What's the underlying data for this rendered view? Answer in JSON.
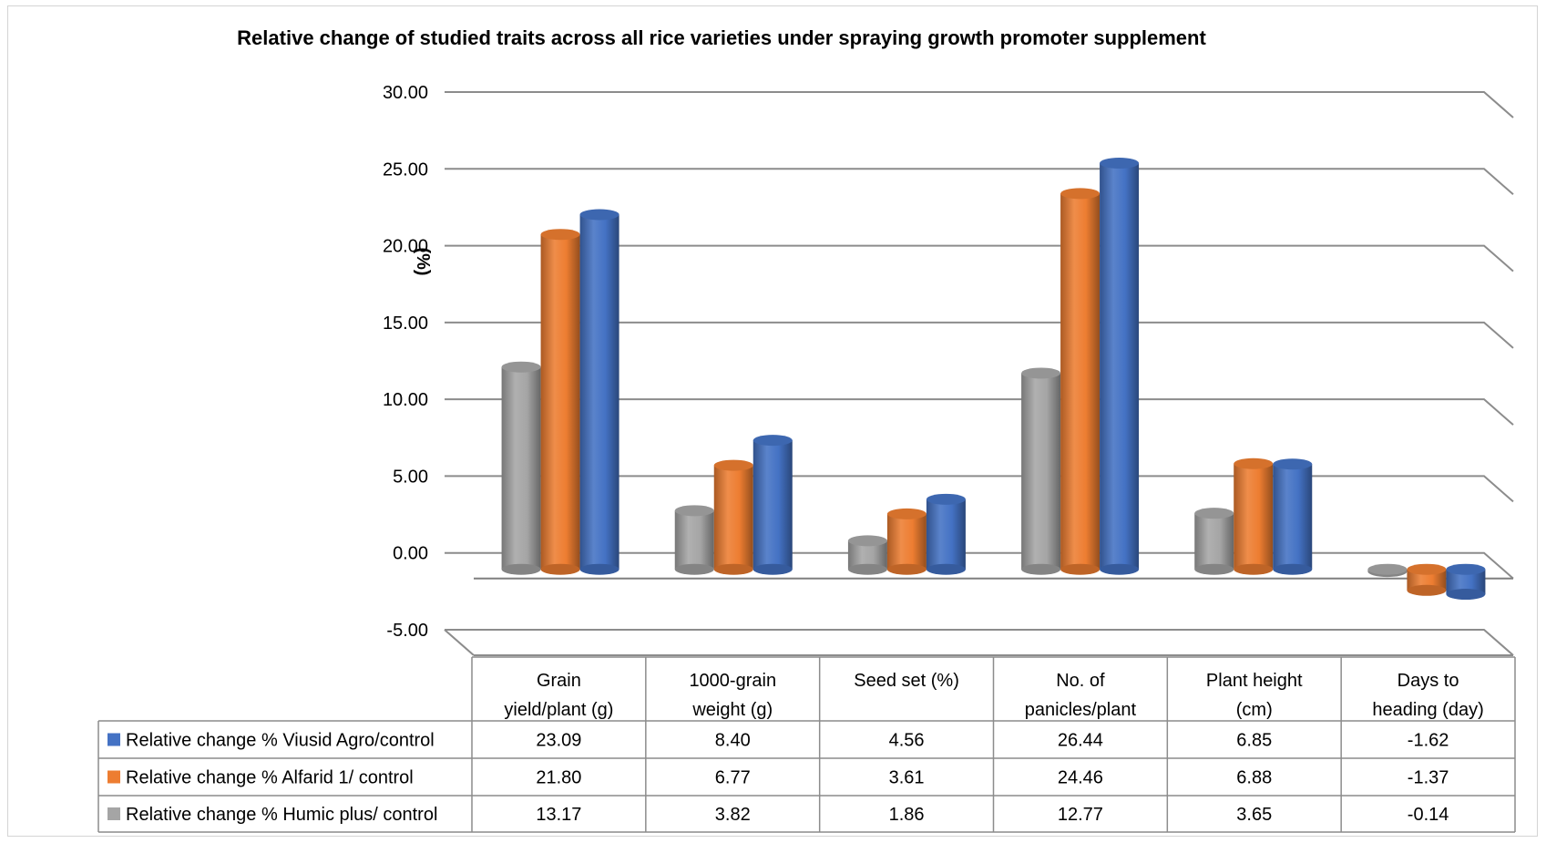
{
  "chart_data": {
    "type": "bar",
    "title": "Relative change of studied traits across all rice varieties under spraying growth promoter supplement",
    "ylabel": "(%)",
    "ylim": [
      -5,
      30
    ],
    "yticks": [
      "30.00",
      "25.00",
      "20.00",
      "15.00",
      "10.00",
      "5.00",
      "0.00",
      "-5.00"
    ],
    "ytick_values": [
      30,
      25,
      20,
      15,
      10,
      5,
      0,
      -5
    ],
    "categories": [
      [
        "Grain",
        "yield/plant (g)"
      ],
      [
        "1000-grain",
        "weight (g)"
      ],
      [
        "Seed set (%)"
      ],
      [
        "No. of",
        "panicles/plant"
      ],
      [
        "Plant height",
        "(cm)"
      ],
      [
        "Days to",
        "heading (day)"
      ]
    ],
    "series": [
      {
        "name": "Relative change % Viusid Agro/control",
        "color": "#4472c4",
        "values": [
          23.09,
          8.4,
          4.56,
          26.44,
          6.85,
          -1.62
        ],
        "labels": [
          "23.09",
          "8.40",
          "4.56",
          "26.44",
          "6.85",
          "-1.62"
        ]
      },
      {
        "name": "Relative change % Alfarid 1/ control",
        "color": "#ed7d31",
        "values": [
          21.8,
          6.77,
          3.61,
          24.46,
          6.88,
          -1.37
        ],
        "labels": [
          "21.80",
          "6.77",
          "3.61",
          "24.46",
          "6.88",
          "-1.37"
        ]
      },
      {
        "name": "Relative change % Humic plus/ control",
        "color": "#a5a5a5",
        "values": [
          13.17,
          3.82,
          1.86,
          12.77,
          3.65,
          -0.14
        ],
        "labels": [
          "13.17",
          "3.82",
          "1.86",
          "12.77",
          "3.65",
          "-0.14"
        ]
      }
    ],
    "bar_draw_order": [
      2,
      1,
      0
    ],
    "grid": true,
    "legend_position": "data-table-left"
  }
}
